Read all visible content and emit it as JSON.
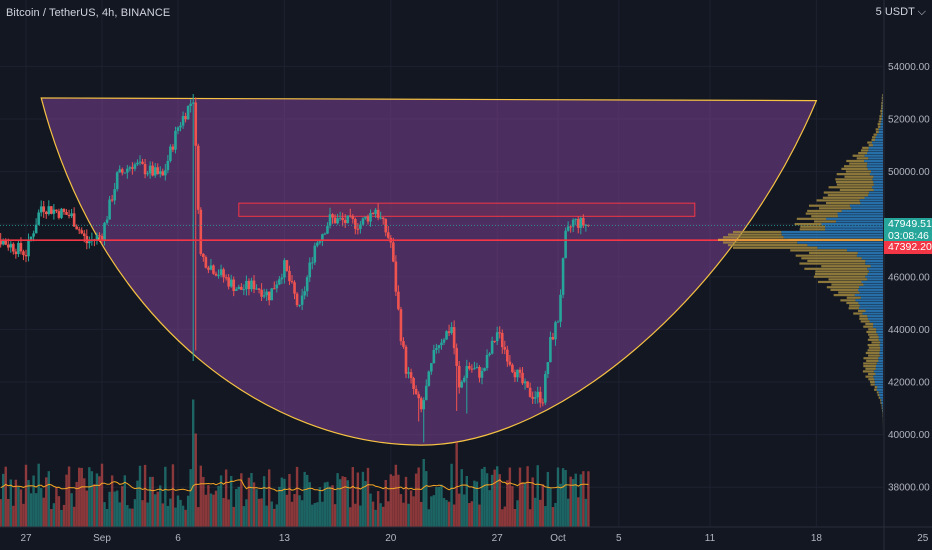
{
  "symbol_title": "Bitcoin / TetherUS, 4h, BINANCE",
  "unit_label": "5 USDT ⌵",
  "price_tags": {
    "last_price": "47949.51",
    "countdown": "03:08:46",
    "line_price": "47392.20"
  },
  "colors": {
    "background": "#131722",
    "up": "#26a69a",
    "down": "#ef5350",
    "pattern_fill": "#7b3f91",
    "pattern_stroke": "#f5c242",
    "level_line": "#f23645",
    "volume_ma": "#f5a623",
    "profile_up": "#2a79b8",
    "profile_down": "#a38a3f",
    "poc": "#e8a83a"
  },
  "chart_data": {
    "type": "candlestick",
    "title": "Bitcoin / TetherUS, 4h, BINANCE",
    "y_axis": {
      "ticks": [
        54000,
        52000,
        50000,
        48000,
        46000,
        44000,
        42000,
        40000,
        38000
      ],
      "tick_labels": [
        "54000.00",
        "52000.00",
        "50000.00",
        "48000.00",
        "46000.00",
        "44000.00",
        "42000.00",
        "40000.00",
        "38000.00"
      ],
      "range": [
        36900,
        55800
      ]
    },
    "x_axis": {
      "tick_labels": [
        "27",
        "Sep",
        "6",
        "13",
        "20",
        "27",
        "Oct",
        "5",
        "11",
        "18",
        "25"
      ],
      "tick_dates": [
        "2021-08-27",
        "2021-09-01",
        "2021-09-06",
        "2021-09-13",
        "2021-09-20",
        "2021-09-27",
        "2021-10-01",
        "2021-10-05",
        "2021-10-11",
        "2021-10-18",
        "2021-10-25"
      ]
    },
    "horizontal_level": 47392.2,
    "last_price": 47949.51,
    "resistance_zone": {
      "from": 48300,
      "to": 48800,
      "start_date": "2021-09-10",
      "end_date": "2021-10-10"
    },
    "cup_pattern": {
      "left_rim": [
        "2021-08-28",
        52800
      ],
      "bottom": [
        "2021-09-22",
        39600
      ],
      "right_rim": [
        "2021-10-18",
        52700
      ]
    },
    "price_waypoints": [
      [
        "2021-08-24",
        48000
      ],
      [
        "2021-08-25",
        47500
      ],
      [
        "2021-08-27",
        46900
      ],
      [
        "2021-08-28",
        48700
      ],
      [
        "2021-08-30",
        48300
      ],
      [
        "2021-08-31",
        47300
      ],
      [
        "2021-09-01",
        47600
      ],
      [
        "2021-09-02",
        49800
      ],
      [
        "2021-09-03",
        50300
      ],
      [
        "2021-09-05",
        49800
      ],
      [
        "2021-09-06",
        51700
      ],
      [
        "2021-09-07",
        52800
      ],
      [
        "2021-09-07T12:00",
        46800
      ],
      [
        "2021-09-08",
        46500
      ],
      [
        "2021-09-10",
        45500
      ],
      [
        "2021-09-11",
        45700
      ],
      [
        "2021-09-12",
        45300
      ],
      [
        "2021-09-13",
        46400
      ],
      [
        "2021-09-14",
        44700
      ],
      [
        "2021-09-15",
        47200
      ],
      [
        "2021-09-16",
        48200
      ],
      [
        "2021-09-18",
        48000
      ],
      [
        "2021-09-19",
        48600
      ],
      [
        "2021-09-20",
        47300
      ],
      [
        "2021-09-20T16:00",
        43800
      ],
      [
        "2021-09-21",
        42500
      ],
      [
        "2021-09-22",
        40900
      ],
      [
        "2021-09-23",
        43400
      ],
      [
        "2021-09-24",
        44100
      ],
      [
        "2021-09-24T12:00",
        41700
      ],
      [
        "2021-09-25",
        42600
      ],
      [
        "2021-09-26",
        42300
      ],
      [
        "2021-09-27",
        43900
      ],
      [
        "2021-09-28",
        42600
      ],
      [
        "2021-09-29",
        41600
      ],
      [
        "2021-09-30",
        41400
      ],
      [
        "2021-09-30T12:00",
        43500
      ],
      [
        "2021-10-01",
        44400
      ],
      [
        "2021-10-01T12:00",
        47500
      ],
      [
        "2021-10-02",
        48100
      ],
      [
        "2021-10-03",
        47950
      ]
    ],
    "volume_profile": {
      "poc_price": 47400
    }
  }
}
